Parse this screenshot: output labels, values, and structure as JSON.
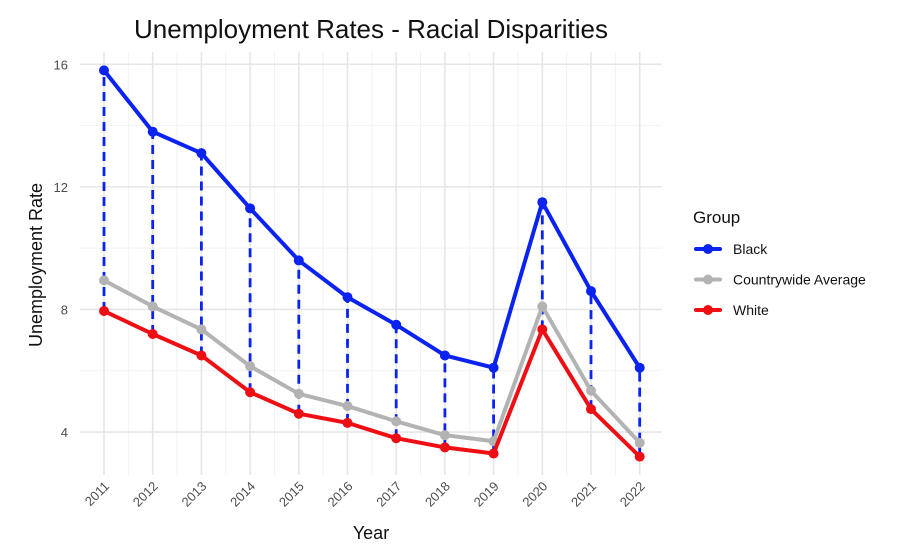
{
  "chart_data": {
    "type": "line",
    "title": "Unemployment Rates - Racial Disparities",
    "xlabel": "Year",
    "ylabel": "Unemployment Rate",
    "categories": [
      "2011",
      "2012",
      "2013",
      "2014",
      "2015",
      "2016",
      "2017",
      "2018",
      "2019",
      "2020",
      "2021",
      "2022"
    ],
    "ylim": [
      2.6,
      16.4
    ],
    "yticks": [
      4,
      8,
      12,
      16
    ],
    "grid": true,
    "legend": {
      "title": "Group",
      "position": "right"
    },
    "series": [
      {
        "name": "Black",
        "color": "#0a23f0",
        "values": [
          15.8,
          13.8,
          13.1,
          11.3,
          9.6,
          8.4,
          7.5,
          6.5,
          6.1,
          11.5,
          8.6,
          6.1
        ]
      },
      {
        "name": "Countrywide Average",
        "color": "#b3b3b3",
        "values": [
          8.95,
          8.1,
          7.35,
          6.15,
          5.25,
          4.85,
          4.35,
          3.9,
          3.7,
          8.1,
          5.35,
          3.65
        ]
      },
      {
        "name": "White",
        "color": "#ee0f14",
        "values": [
          7.95,
          7.2,
          6.5,
          5.3,
          4.6,
          4.3,
          3.8,
          3.5,
          3.3,
          7.35,
          4.75,
          3.2
        ]
      }
    ],
    "annotations": "dashed blue vertical segments connect White to Black value for each year"
  }
}
